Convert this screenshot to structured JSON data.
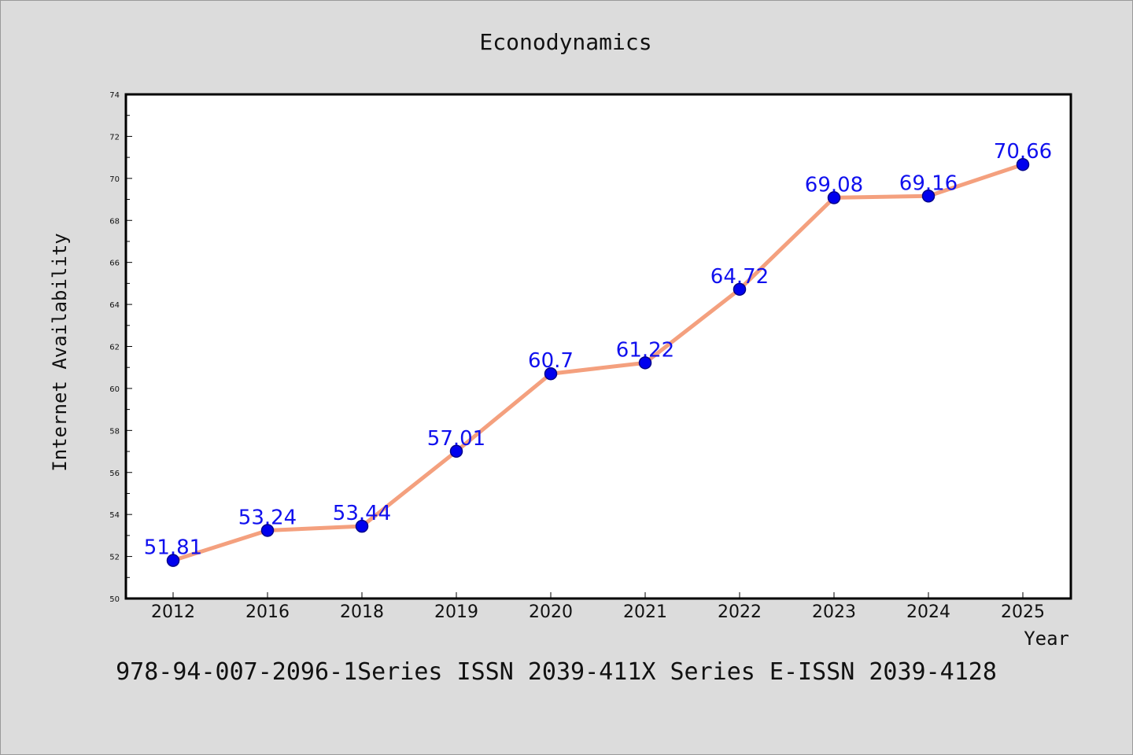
{
  "chart_data": {
    "type": "line",
    "title": "Econodynamics",
    "xlabel": "Year",
    "ylabel": "Internet Availability",
    "categories": [
      "2012",
      "2016",
      "2018",
      "2019",
      "2020",
      "2021",
      "2022",
      "2023",
      "2024",
      "2025"
    ],
    "series": [
      {
        "values": [
          51.81,
          53.24,
          53.44,
          57.01,
          60.7,
          61.22,
          64.72,
          69.08,
          69.16,
          70.66
        ],
        "data_labels": [
          "51.81",
          "53.24",
          "53.44",
          "57.01",
          "60.7",
          "61.22",
          "64.72",
          "69.08",
          "69.16",
          "70.66"
        ]
      }
    ],
    "ylim": [
      50,
      74
    ],
    "yticks": [
      "50",
      "52",
      "54",
      "56",
      "58",
      "60",
      "62",
      "64",
      "66",
      "68",
      "70",
      "72",
      "74"
    ],
    "grid": false,
    "legend": "none",
    "colors": {
      "line": "#f4a07e",
      "marker": "#0000ee",
      "marker_edge": "#00008b",
      "data_label": "#1010ee",
      "background": "#dcdcdc",
      "plot_background": "#ffffff"
    }
  },
  "footer": {
    "text": "978-94-007-2096-1Series ISSN 2039-411X Series E-ISSN 2039-4128"
  }
}
